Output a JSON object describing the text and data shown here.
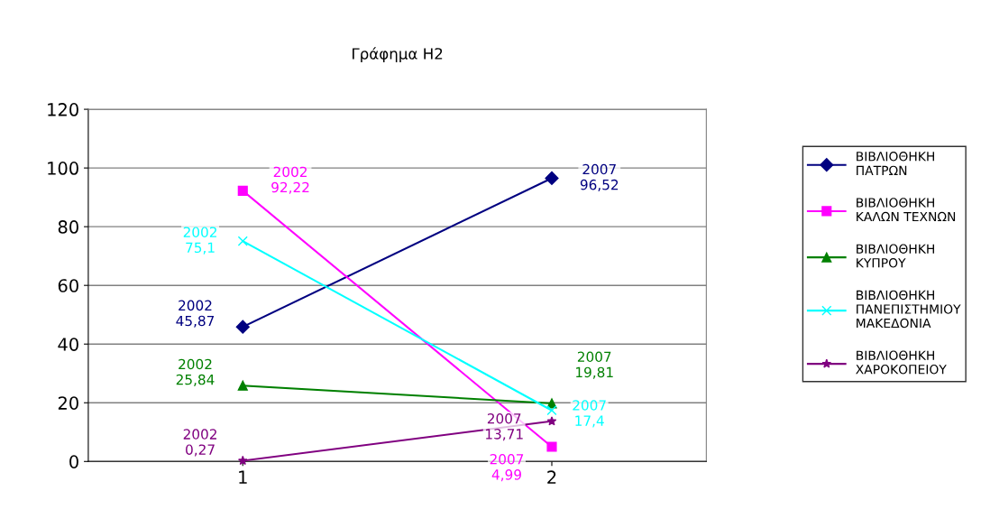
{
  "chart_data": {
    "type": "line",
    "title": "Γράφημα Η2",
    "categories": [
      "1",
      "2"
    ],
    "series": [
      {
        "name": "ΒΙΒΛΙΟΘΗΚΗ\nΠΑΤΡΩΝ",
        "color": "#000080",
        "marker": "diamond",
        "values": [
          45.87,
          96.52
        ],
        "value_labels": [
          "2002\n45,87",
          "2007\n96,52"
        ]
      },
      {
        "name": "ΒΙΒΛΙΟΘΗΚΗ\nΚΑΛΩΝ ΤΕΧΝΩΝ",
        "color": "#ff00ff",
        "marker": "square",
        "values": [
          92.22,
          4.99
        ],
        "value_labels": [
          "2002\n92,22",
          "2007\n4,99"
        ]
      },
      {
        "name": "ΒΙΒΛΙΟΘΗΚΗ\nΚΥΠΡΟΥ",
        "color": "#008000",
        "marker": "triangle",
        "values": [
          25.84,
          19.81
        ],
        "value_labels": [
          "2002\n25,84",
          "2007\n19,81"
        ]
      },
      {
        "name": "ΒΙΒΛΙΟΘΗΚΗ\nΠΑΝΕΠΙΣΤΗΜΙΟΥ\nΜΑΚΕΔΟΝΙΑ",
        "color": "#00ffff",
        "marker": "cross",
        "values": [
          75.1,
          17.4
        ],
        "value_labels": [
          "2002\n75,1",
          "2007\n17,4"
        ]
      },
      {
        "name": "ΒΙΒΛΙΟΘΗΚΗ\nΧΑΡΟΚΟΠΕΙΟΥ",
        "color": "#800080",
        "marker": "star",
        "values": [
          0.27,
          13.71
        ],
        "value_labels": [
          "2002\n0,27",
          "2007\n13,71"
        ]
      }
    ],
    "ylim": [
      0,
      120
    ],
    "yticks": [
      0,
      20,
      40,
      60,
      80,
      100,
      120
    ],
    "grid": "y",
    "legend": "right"
  }
}
